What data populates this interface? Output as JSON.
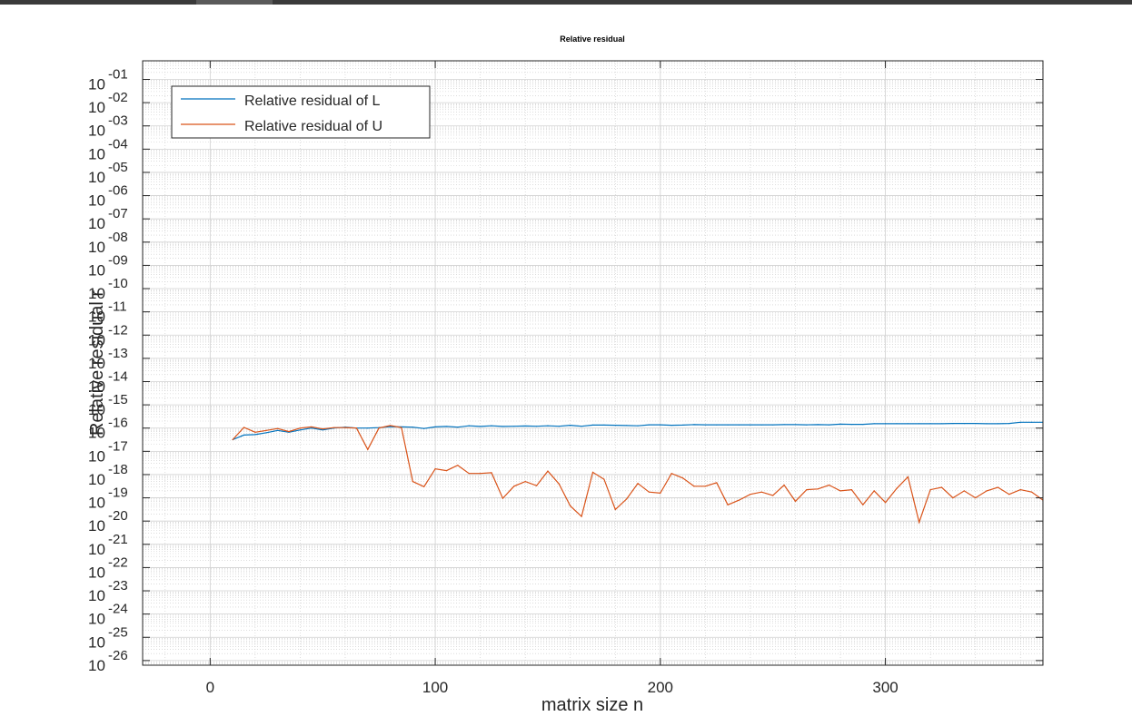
{
  "window": {
    "title": ""
  },
  "chart_data": {
    "type": "line",
    "title": "Relative residual",
    "xlabel": "matrix size n",
    "ylabel": "Relative residual r",
    "xlim": [
      -30,
      370
    ],
    "ylim_log10": [
      -26.2,
      -0.2
    ],
    "y_scale": "log",
    "x_ticks": [
      0,
      100,
      200,
      300
    ],
    "x_tick_labels": [
      "0",
      "100",
      "200",
      "300"
    ],
    "y_ticks_log10": [
      -26,
      -25,
      -24,
      -23,
      -22,
      -21,
      -20,
      -19,
      -18,
      -17,
      -16,
      -15,
      -14,
      -13,
      -12,
      -11,
      -10,
      -9,
      -8,
      -7,
      -6,
      -5,
      -4,
      -3,
      -2,
      -1
    ],
    "y_tick_base": "10",
    "y_tick_exponents": [
      "-26",
      "-25",
      "-24",
      "-23",
      "-22",
      "-21",
      "-20",
      "-19",
      "-18",
      "-17",
      "-16",
      "-15",
      "-14",
      "-13",
      "-12",
      "-11",
      "-10",
      "-09",
      "-08",
      "-07",
      "-06",
      "-05",
      "-04",
      "-03",
      "-02",
      "-01"
    ],
    "grid": true,
    "minor_grid": true,
    "legend_position": "top-left",
    "x": [
      10,
      15,
      20,
      25,
      30,
      35,
      40,
      45,
      50,
      55,
      60,
      65,
      70,
      75,
      80,
      85,
      90,
      95,
      100,
      105,
      110,
      115,
      120,
      125,
      130,
      135,
      140,
      145,
      150,
      155,
      160,
      165,
      170,
      175,
      180,
      185,
      190,
      195,
      200,
      205,
      210,
      215,
      220,
      225,
      230,
      235,
      240,
      245,
      250,
      255,
      260,
      265,
      270,
      275,
      280,
      285,
      290,
      295,
      300,
      305,
      310,
      315,
      320,
      325,
      330,
      335,
      340,
      345,
      350,
      355,
      360,
      365,
      370
    ],
    "series": [
      {
        "name": "Relative residual of L",
        "color": "#0072bd",
        "log10_values": [
          -16.5,
          -16.3,
          -16.28,
          -16.2,
          -16.1,
          -16.18,
          -16.08,
          -16.0,
          -16.08,
          -16.0,
          -15.96,
          -16.0,
          -16.0,
          -15.98,
          -15.94,
          -15.95,
          -15.96,
          -16.02,
          -15.95,
          -15.93,
          -15.96,
          -15.9,
          -15.93,
          -15.9,
          -15.93,
          -15.92,
          -15.91,
          -15.92,
          -15.9,
          -15.92,
          -15.88,
          -15.92,
          -15.87,
          -15.87,
          -15.88,
          -15.89,
          -15.9,
          -15.86,
          -15.86,
          -15.88,
          -15.87,
          -15.85,
          -15.86,
          -15.86,
          -15.86,
          -15.86,
          -15.86,
          -15.86,
          -15.86,
          -15.85,
          -15.85,
          -15.86,
          -15.85,
          -15.86,
          -15.83,
          -15.84,
          -15.84,
          -15.81,
          -15.81,
          -15.81,
          -15.81,
          -15.81,
          -15.81,
          -15.81,
          -15.8,
          -15.8,
          -15.8,
          -15.81,
          -15.81,
          -15.8,
          -15.75,
          -15.75,
          -15.75
        ]
      },
      {
        "name": "Relative residual of U",
        "color": "#d95319",
        "log10_values": [
          -16.5,
          -15.97,
          -16.18,
          -16.1,
          -16.02,
          -16.15,
          -16.0,
          -15.95,
          -16.04,
          -15.98,
          -15.98,
          -16.0,
          -16.92,
          -16.0,
          -15.89,
          -15.98,
          -18.3,
          -18.52,
          -17.75,
          -17.83,
          -17.6,
          -17.95,
          -17.95,
          -17.92,
          -19.02,
          -18.5,
          -18.3,
          -18.48,
          -17.85,
          -18.4,
          -19.35,
          -19.8,
          -17.9,
          -18.2,
          -19.5,
          -19.05,
          -18.38,
          -18.75,
          -18.8,
          -17.95,
          -18.15,
          -18.5,
          -18.5,
          -18.35,
          -19.3,
          -19.1,
          -18.85,
          -18.75,
          -18.9,
          -18.45,
          -19.15,
          -18.65,
          -18.62,
          -18.45,
          -18.7,
          -18.65,
          -19.3,
          -18.7,
          -19.2,
          -18.6,
          -18.1,
          -20.05,
          -18.65,
          -18.55,
          -19.0,
          -18.7,
          -19.0,
          -18.7,
          -18.55,
          -18.85,
          -18.65,
          -18.75,
          -19.1
        ]
      }
    ]
  }
}
